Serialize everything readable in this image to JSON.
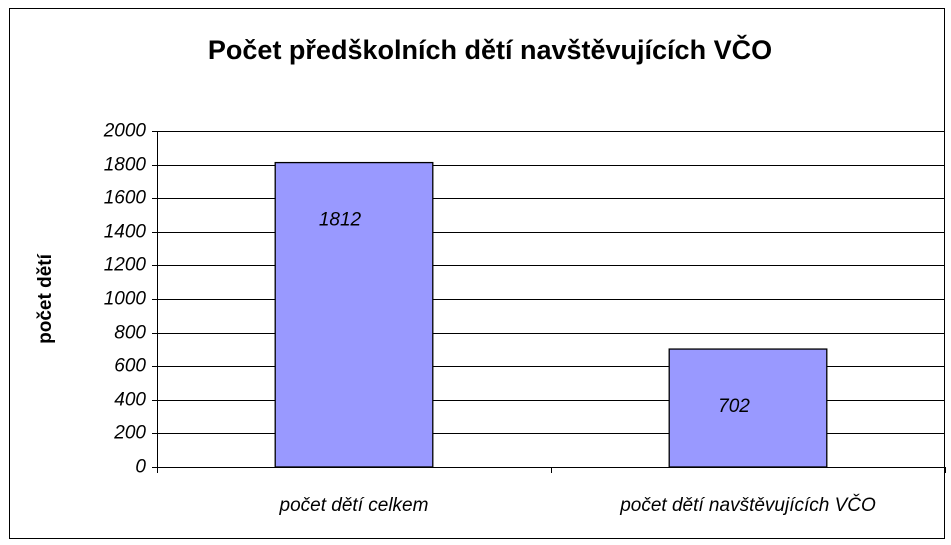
{
  "chart_data": {
    "type": "bar",
    "title": "Počet předškolních dětí navštěvujících VČO",
    "ylabel": "počet dětí",
    "categories": [
      "počet dětí celkem",
      "počet dětí navštěvujících VČO"
    ],
    "values": [
      1812,
      702
    ],
    "color": "#9999ff",
    "ylim": [
      0,
      2000
    ],
    "yticks": [
      0,
      200,
      400,
      600,
      800,
      1000,
      1200,
      1400,
      1600,
      1800,
      2000
    ],
    "grid": true
  }
}
